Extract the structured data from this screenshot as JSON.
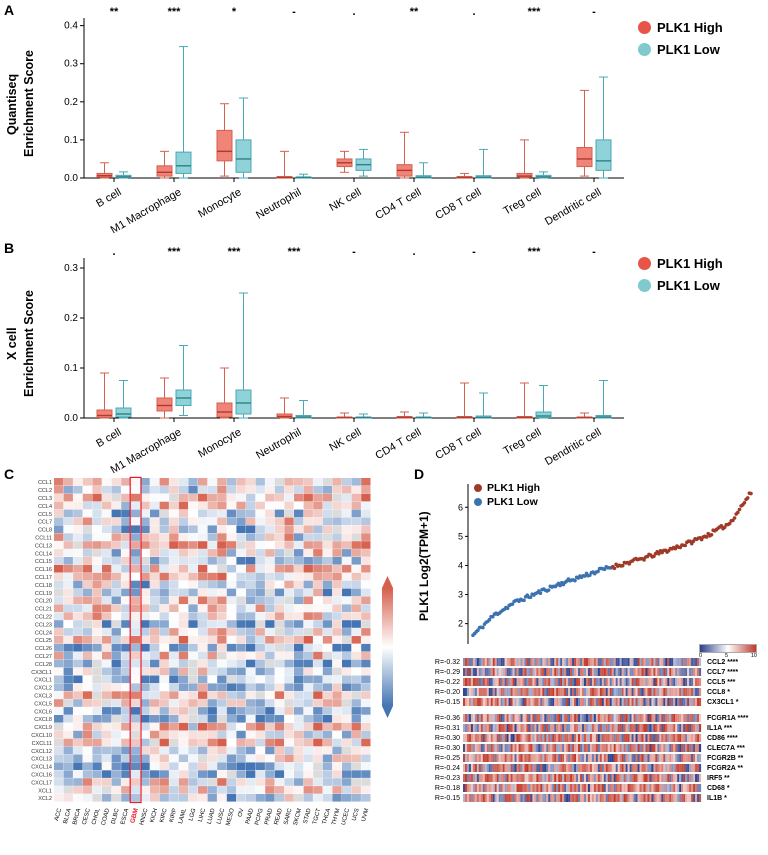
{
  "figure": {
    "panels": {
      "a": "A",
      "b": "B",
      "c": "C",
      "d": "D"
    }
  },
  "colors": {
    "box_high_fill": "#F08478",
    "box_high_stroke": "#D6604D",
    "box_high_median": "#B03A2E",
    "box_low_fill": "#8FD2D8",
    "box_low_stroke": "#4BA8B4",
    "box_low_median": "#2E7F8A",
    "legend_high": "#E65547",
    "legend_low": "#7FC9CF",
    "scatter_high": "#9E3A26",
    "scatter_low": "#3C72B0",
    "heat_red": "#D6604D",
    "heat_blue": "#4575B4",
    "heat_na": "#DCDCDC",
    "strip_red": "#C0392B",
    "strip_blue": "#2B3F8C",
    "gbm_highlight": "#E8192C"
  },
  "chart_data": [
    {
      "id": "quantiseq-boxplot",
      "type": "boxplot",
      "ylabel_line1": "Quantiseq",
      "ylabel_line2": "Enrichment Score",
      "ylim": [
        0,
        0.42
      ],
      "yticks": [
        0,
        0.1,
        0.2,
        0.3,
        0.4
      ],
      "categories": [
        "B cell",
        "M1 Macrophage",
        "Monocyte",
        "Neutrophil",
        "NK cell",
        "CD4 T cell",
        "CD8 T cell",
        "Treg cell",
        "Dendritic cell"
      ],
      "significance": [
        "**",
        "***",
        "*",
        "-",
        ".",
        "**",
        ".",
        "***",
        "-"
      ],
      "series": [
        {
          "name": "PLK1 High",
          "boxes": [
            [
              0,
              0.002,
              0.006,
              0.012,
              0.04
            ],
            [
              0,
              0.005,
              0.015,
              0.032,
              0.07
            ],
            [
              0.005,
              0.045,
              0.07,
              0.125,
              0.195
            ],
            [
              0,
              0,
              0.001,
              0.004,
              0.07
            ],
            [
              0.015,
              0.03,
              0.04,
              0.05,
              0.07
            ],
            [
              0,
              0.005,
              0.02,
              0.035,
              0.12
            ],
            [
              0,
              0,
              0.001,
              0.004,
              0.012
            ],
            [
              0,
              0.002,
              0.005,
              0.012,
              0.1
            ],
            [
              0.005,
              0.03,
              0.05,
              0.08,
              0.23
            ]
          ]
        },
        {
          "name": "PLK1 Low",
          "boxes": [
            [
              0,
              0.001,
              0.003,
              0.007,
              0.016
            ],
            [
              0,
              0.012,
              0.032,
              0.068,
              0.345
            ],
            [
              0,
              0.015,
              0.05,
              0.1,
              0.21
            ],
            [
              0,
              0,
              0.001,
              0.003,
              0.01
            ],
            [
              0.005,
              0.02,
              0.035,
              0.05,
              0.075
            ],
            [
              0,
              0,
              0.002,
              0.006,
              0.04
            ],
            [
              0,
              0,
              0.002,
              0.006,
              0.075
            ],
            [
              0,
              0.001,
              0.003,
              0.007,
              0.016
            ],
            [
              0,
              0.02,
              0.045,
              0.1,
              0.265
            ]
          ]
        }
      ]
    },
    {
      "id": "xcell-boxplot",
      "type": "boxplot",
      "ylabel_line1": "X cell",
      "ylabel_line2": "Enrichment Score",
      "ylim": [
        0,
        0.32
      ],
      "yticks": [
        0,
        0.1,
        0.2,
        0.3
      ],
      "categories": [
        "B cell",
        "M1 Macrophage",
        "Monocyte",
        "Neutrophil",
        "NK cell",
        "CD4 T cell",
        "CD8 T cell",
        "Treg cell",
        "Dendritic cell"
      ],
      "significance": [
        ".",
        "***",
        "***",
        "***",
        "-",
        ".",
        "-",
        "***",
        "-"
      ],
      "series": [
        {
          "name": "PLK1 High",
          "boxes": [
            [
              0,
              0.001,
              0.005,
              0.016,
              0.09
            ],
            [
              0,
              0.014,
              0.025,
              0.04,
              0.08
            ],
            [
              0,
              0.002,
              0.012,
              0.03,
              0.1
            ],
            [
              0,
              0.001,
              0.003,
              0.008,
              0.04
            ],
            [
              0,
              0,
              0.001,
              0.002,
              0.01
            ],
            [
              0,
              0,
              0.001,
              0.003,
              0.012
            ],
            [
              0,
              0,
              0.001,
              0.003,
              0.07
            ],
            [
              0,
              0,
              0.001,
              0.003,
              0.07
            ],
            [
              0,
              0,
              0.001,
              0.002,
              0.01
            ]
          ]
        },
        {
          "name": "PLK1 Low",
          "boxes": [
            [
              0,
              0.002,
              0.008,
              0.02,
              0.075
            ],
            [
              0.005,
              0.025,
              0.04,
              0.056,
              0.145
            ],
            [
              0,
              0.008,
              0.03,
              0.056,
              0.25
            ],
            [
              0,
              0,
              0.002,
              0.005,
              0.035
            ],
            [
              0,
              0,
              0.001,
              0.002,
              0.008
            ],
            [
              0,
              0,
              0.001,
              0.002,
              0.01
            ],
            [
              0,
              0,
              0.001,
              0.004,
              0.05
            ],
            [
              0,
              0.001,
              0.004,
              0.012,
              0.065
            ],
            [
              0,
              0,
              0.002,
              0.005,
              0.075
            ]
          ]
        }
      ]
    },
    {
      "id": "chemokine-heatmap",
      "type": "heatmap",
      "rows": [
        "CCL1",
        "CCL2",
        "CCL3",
        "CCL4",
        "CCL5",
        "CCL7",
        "CCL8",
        "CCL11",
        "CCL13",
        "CCL14",
        "CCL15",
        "CCL16",
        "CCL17",
        "CCL18",
        "CCL19",
        "CCL20",
        "CCL21",
        "CCL22",
        "CCL23",
        "CCL24",
        "CCL25",
        "CCL26",
        "CCL27",
        "CCL28",
        "CX3CL1",
        "CXCL1",
        "CXCL2",
        "CXCL3",
        "CXCL5",
        "CXCL6",
        "CXCL8",
        "CXCL9",
        "CXCL10",
        "CXCL11",
        "CXCL12",
        "CXCL13",
        "CXCL14",
        "CXCL16",
        "CXCL17",
        "XCL1",
        "XCL2"
      ],
      "columns": [
        "ACC",
        "BLCA",
        "BRCA",
        "CESC",
        "CHOL",
        "COAD",
        "DLBC",
        "ESCA",
        "GBM",
        "HNSC",
        "KICH",
        "KIRC",
        "KIRP",
        "LAML",
        "LGG",
        "LIHC",
        "LUAD",
        "LUSC",
        "MESO",
        "OV",
        "PAAD",
        "PCPG",
        "PRAD",
        "READ",
        "SARC",
        "SKCM",
        "STAD",
        "TGCT",
        "THCA",
        "THYM",
        "UCEC",
        "UCS",
        "UVM"
      ],
      "highlighted_column": "GBM",
      "seed": 42
    },
    {
      "id": "plk1-expression",
      "type": "scatter",
      "ylabel": "PLK1 Log2(TPM+1)",
      "ylim": [
        1.3,
        6.8
      ],
      "yticks": [
        2,
        3,
        4,
        5,
        6
      ],
      "n_points": 170,
      "split_fraction": 0.5,
      "profile": [
        1.6,
        2.3,
        2.75,
        3.05,
        3.35,
        3.6,
        3.85,
        4.05,
        4.25,
        4.5,
        4.75,
        5.05,
        5.45,
        6.5
      ],
      "legend": [
        {
          "label": "PLK1 High"
        },
        {
          "label": "PLK1 Low"
        }
      ],
      "colorbar": {
        "ticks": [
          "0",
          "5",
          "10"
        ]
      },
      "correlation_blocks": [
        {
          "rows": [
            {
              "r_label": "R=-0.32",
              "gene": "CCL2",
              "sig": "****",
              "blue_fraction": 0.5
            },
            {
              "r_label": "R=-0.29",
              "gene": "CCL7",
              "sig": "****",
              "blue_fraction": 0.45
            },
            {
              "r_label": "R=-0.22",
              "gene": "CCL5",
              "sig": "***",
              "blue_fraction": 0.4
            },
            {
              "r_label": "R=-0.20",
              "gene": "CCL8",
              "sig": "*",
              "blue_fraction": 0.35
            },
            {
              "r_label": "R=-0.15",
              "gene": "CX3CL1",
              "sig": "*",
              "blue_fraction": 0.35
            }
          ]
        },
        {
          "rows": [
            {
              "r_label": "R=-0.36",
              "gene": "FCGR1A",
              "sig": "****",
              "blue_fraction": 0.35
            },
            {
              "r_label": "R=-0.31",
              "gene": "IL1A",
              "sig": "***",
              "blue_fraction": 0.3
            },
            {
              "r_label": "R=-0.30",
              "gene": "CD86",
              "sig": "****",
              "blue_fraction": 0.3
            },
            {
              "r_label": "R=-0.30",
              "gene": "CLEC7A",
              "sig": "***",
              "blue_fraction": 0.3
            },
            {
              "r_label": "R=-0.25",
              "gene": "FCGR2B",
              "sig": "**",
              "blue_fraction": 0.3
            },
            {
              "r_label": "R=-0.24",
              "gene": "FCGR2A",
              "sig": "**",
              "blue_fraction": 0.28
            },
            {
              "r_label": "R=-0.23",
              "gene": "IRF5",
              "sig": "**",
              "blue_fraction": 0.28
            },
            {
              "r_label": "R=-0.18",
              "gene": "CD68",
              "sig": "*",
              "blue_fraction": 0.25
            },
            {
              "r_label": "R=-0.15",
              "gene": "IL1B",
              "sig": "*",
              "blue_fraction": 0.3
            }
          ]
        }
      ]
    }
  ]
}
